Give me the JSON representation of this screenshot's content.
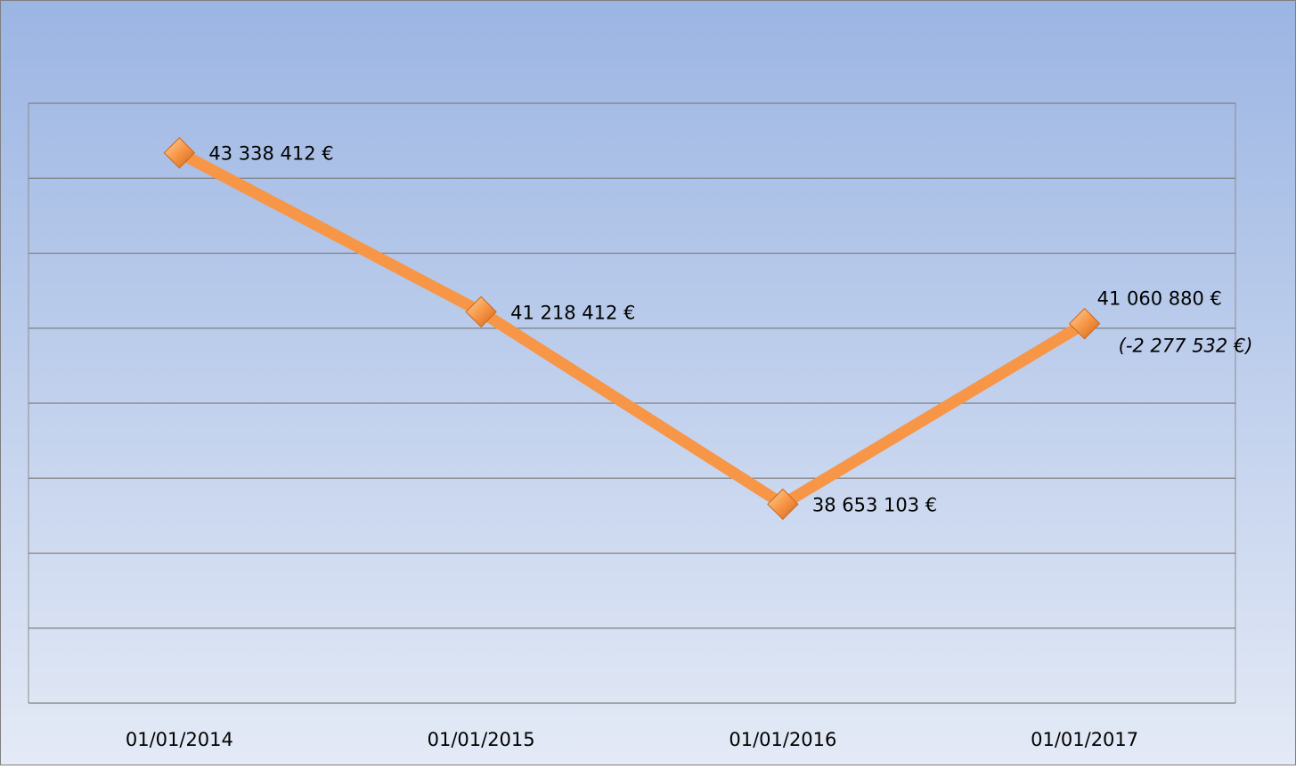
{
  "chart_data": {
    "type": "line",
    "categories": [
      "01/01/2014",
      "01/01/2015",
      "01/01/2016",
      "01/01/2017"
    ],
    "series": [
      {
        "color": "#f79646",
        "values": [
          43338412,
          41218412,
          38653103,
          41060880
        ],
        "value_labels": [
          "43 338 412 €",
          "41 218 412 €",
          "38 653 103 €",
          "41 060 880 €"
        ]
      }
    ],
    "annotation": "(-2 277 532 €)",
    "ylim": [
      36000000,
      44000000
    ],
    "yticks": [
      36000000,
      37000000,
      38000000,
      39000000,
      40000000,
      41000000,
      42000000,
      43000000,
      44000000
    ],
    "grid": true
  }
}
